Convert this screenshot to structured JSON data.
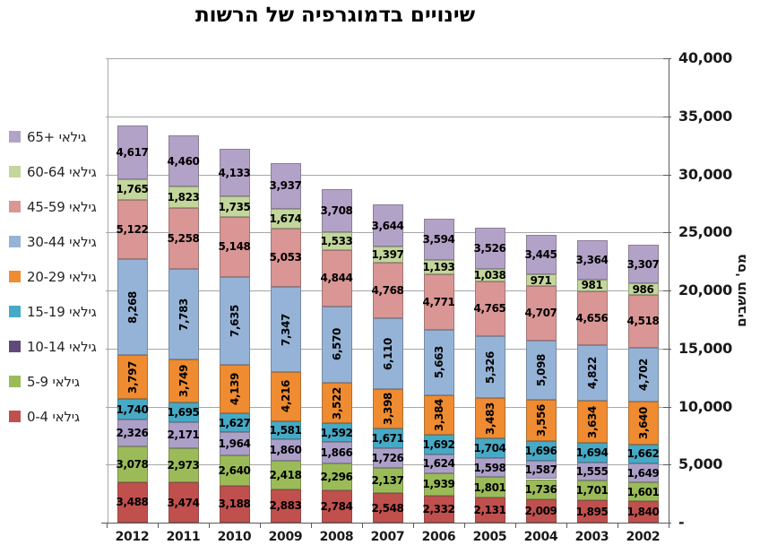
{
  "title": "שינויים בדמוגרפיה של הרשות",
  "y_axis": {
    "title": "מס' תושבים",
    "tick_labels": [
      "40,000",
      "35,000",
      "30,000",
      "25,000",
      "20,000",
      "15,000",
      "10,000",
      "5,000",
      "-"
    ],
    "max": 40000,
    "step": 5000
  },
  "chart_data": {
    "type": "bar",
    "stacked": true,
    "title": "שינויים בדמוגרפיה של הרשות",
    "ylabel": "מס' תושבים",
    "ylim": [
      0,
      40000
    ],
    "grid": true,
    "legend_position": "left",
    "categories": [
      "2012",
      "2011",
      "2010",
      "2009",
      "2008",
      "2007",
      "2006",
      "2005",
      "2004",
      "2003",
      "2002"
    ],
    "series": [
      {
        "name": "0-4 גילאי",
        "color": "#c0504d",
        "rotated_labels": false,
        "values": [
          3488,
          3474,
          3188,
          2883,
          2784,
          2548,
          2332,
          2131,
          2009,
          1895,
          1840
        ]
      },
      {
        "name": "5-9 גילאי",
        "color": "#9bbb59",
        "rotated_labels": false,
        "values": [
          3078,
          2973,
          2640,
          2418,
          2296,
          2137,
          1939,
          1801,
          1736,
          1701,
          1601
        ]
      },
      {
        "name": "10-14 גילאי",
        "color": "#aca0c8",
        "legend_color": "#604a7b",
        "rotated_labels": false,
        "values": [
          2326,
          2171,
          1964,
          1860,
          1866,
          1726,
          1624,
          1598,
          1587,
          1555,
          1649
        ]
      },
      {
        "name": "15-19 גילאי",
        "color": "#46aac6",
        "rotated_labels": false,
        "values": [
          1740,
          1695,
          1627,
          1581,
          1592,
          1671,
          1692,
          1704,
          1696,
          1694,
          1662
        ]
      },
      {
        "name": "20-29 גילאי",
        "color": "#ef8b30",
        "rotated_labels": true,
        "values": [
          3797,
          3749,
          4139,
          4216,
          3522,
          3398,
          3384,
          3483,
          3556,
          3634,
          3640
        ]
      },
      {
        "name": "30-44 גילאי",
        "color": "#95b3d7",
        "rotated_labels": true,
        "values": [
          8268,
          7783,
          7635,
          7347,
          6570,
          6110,
          5663,
          5326,
          5098,
          4822,
          4702
        ]
      },
      {
        "name": "45-59 גילאי",
        "color": "#d99694",
        "rotated_labels": false,
        "values": [
          5122,
          5258,
          5148,
          5053,
          4844,
          4768,
          4771,
          4765,
          4707,
          4656,
          4518
        ]
      },
      {
        "name": "60-64 גילאי",
        "color": "#c3d69b",
        "rotated_labels": false,
        "values": [
          1765,
          1823,
          1735,
          1674,
          1533,
          1397,
          1193,
          1038,
          971,
          981,
          986
        ]
      },
      {
        "name": "65+ גילאי",
        "color": "#b3a2c7",
        "rotated_labels": false,
        "values": [
          4617,
          4460,
          4133,
          3937,
          3708,
          3644,
          3594,
          3526,
          3445,
          3364,
          3307
        ]
      }
    ]
  }
}
